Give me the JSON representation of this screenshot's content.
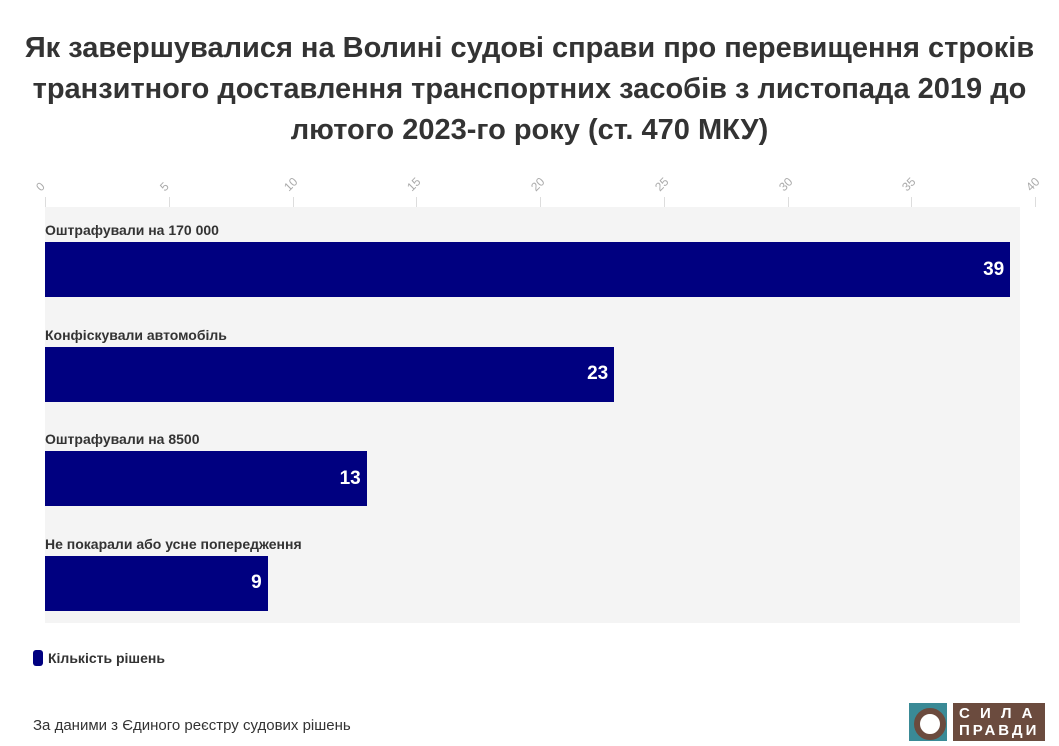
{
  "chart_data": {
    "type": "bar",
    "orientation": "horizontal",
    "title": "Як завершувалися на Волині судові справи про перевищення строків транзитного доставлення транспортних засобів з листопада 2019 до лютого 2023-го року (ст. 470 МКУ)",
    "categories": [
      "Оштрафували на 170 000",
      "Конфіскували автомобіль",
      "Оштрафували на 8500",
      "Не покарали або усне попередження"
    ],
    "series": [
      {
        "name": "Кількість рішень",
        "values": [
          39,
          23,
          13,
          9
        ],
        "color": "#000080"
      }
    ],
    "xlim": [
      0,
      40
    ],
    "xticks": [
      "0",
      "5",
      "10",
      "15",
      "20",
      "25",
      "30",
      "35",
      "40"
    ],
    "legend_position": "bottom-left"
  },
  "source": "За даними з Єдиного реєстру судових рішень",
  "logo": "СИЛА ПРАВДИ"
}
